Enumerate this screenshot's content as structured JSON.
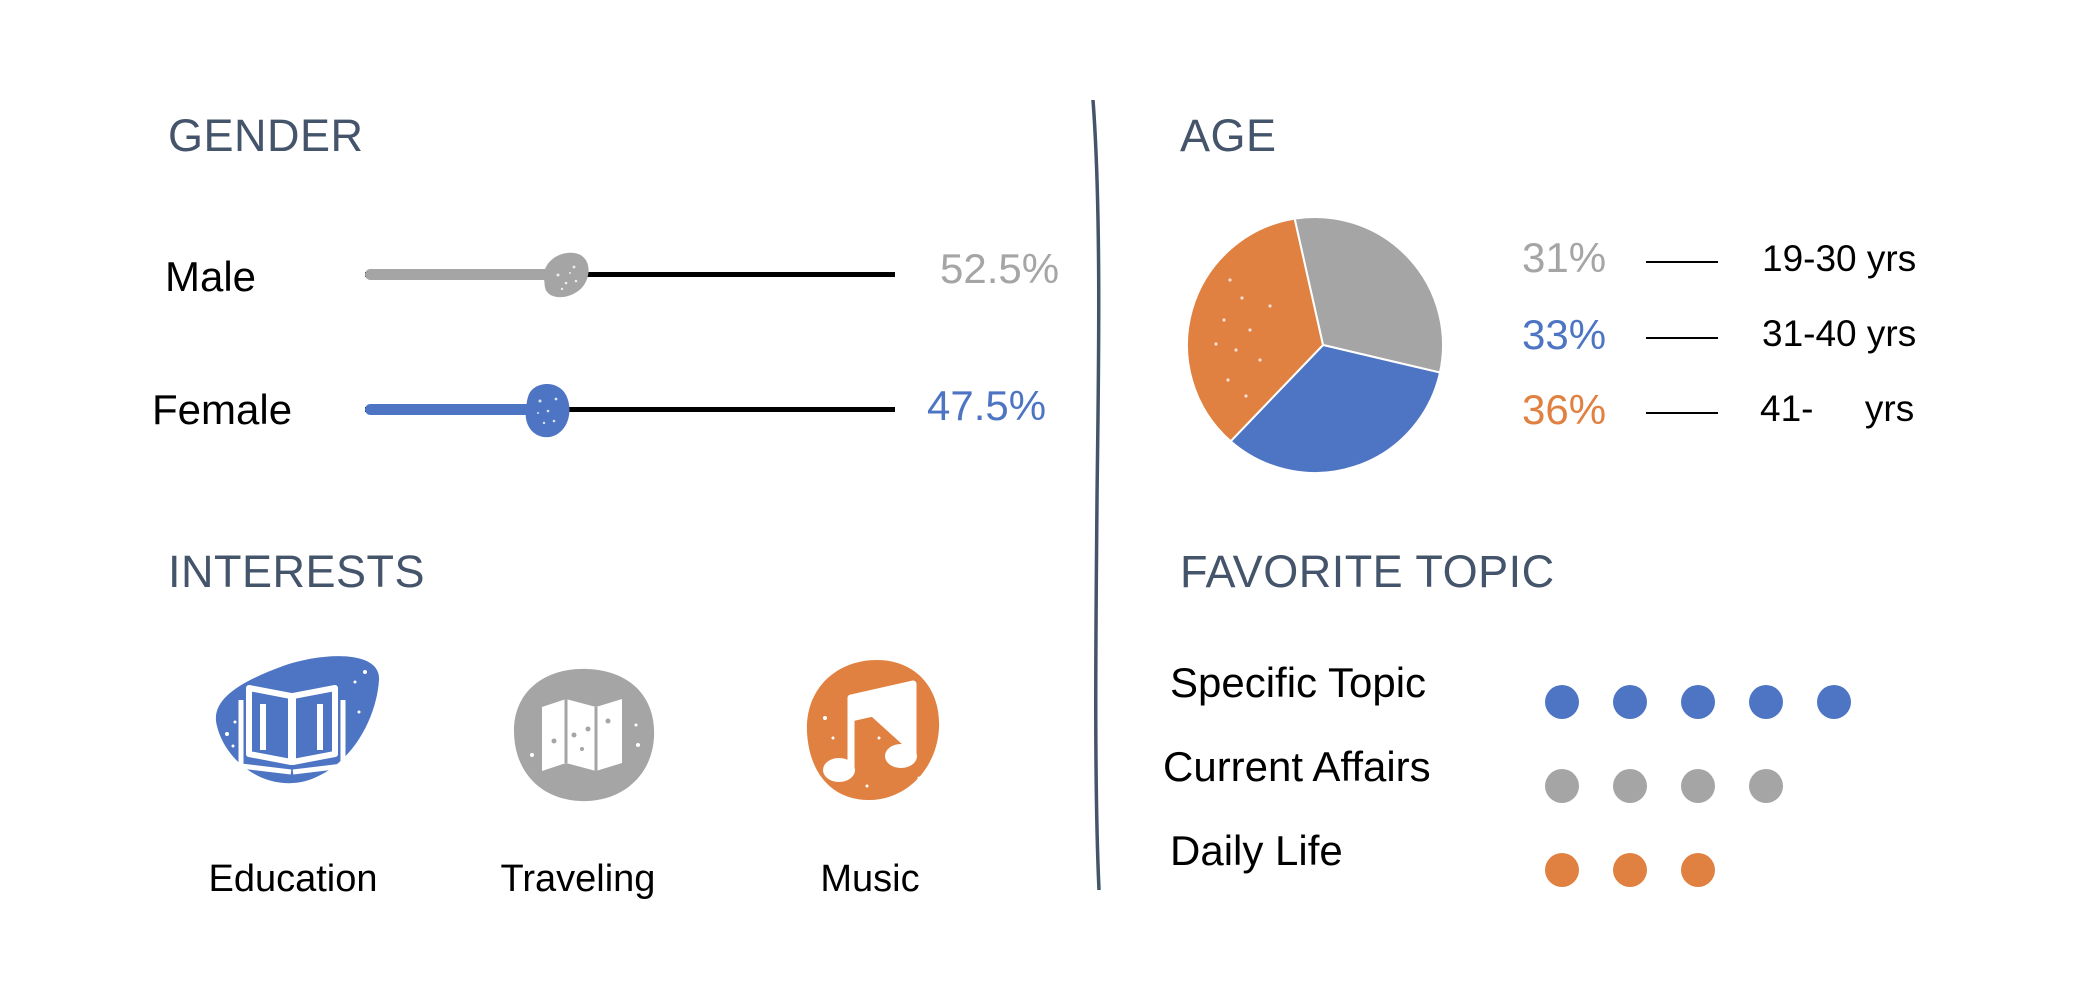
{
  "colors": {
    "heading": "#44546a",
    "gray": "#a5a5a5",
    "blue": "#4e75c3",
    "orange": "#e08141"
  },
  "gender": {
    "title": "GENDER",
    "rows": [
      {
        "label": "Male",
        "value_text": "52.5%",
        "level": 0.525,
        "color": "#a5a5a5"
      },
      {
        "label": "Female",
        "value_text": "47.5%",
        "level": 0.475,
        "color": "#4e75c3"
      }
    ]
  },
  "age": {
    "title": "AGE",
    "chart_data": {
      "type": "pie",
      "slices": [
        {
          "percent_text": "31%",
          "value": 31,
          "range": "19-30 yrs",
          "color": "#a5a5a5"
        },
        {
          "percent_text": "33%",
          "value": 33,
          "range": "31-40 yrs",
          "color": "#4e75c3"
        },
        {
          "percent_text": "36%",
          "value": 36,
          "range": "41-     yrs",
          "color": "#e08141"
        }
      ]
    }
  },
  "interests": {
    "title": "INTERESTS",
    "items": [
      {
        "label": "Education",
        "icon": "book-icon",
        "color": "#4e75c3"
      },
      {
        "label": "Traveling",
        "icon": "map-icon",
        "color": "#a5a5a5"
      },
      {
        "label": "Music",
        "icon": "music-note-icon",
        "color": "#e08141"
      }
    ]
  },
  "favorite_topic": {
    "title": "FAVORITE TOPIC",
    "rows": [
      {
        "label": "Specific Topic",
        "dots": 5,
        "color": "#4e75c3"
      },
      {
        "label": "Current Affairs",
        "dots": 4,
        "color": "#a5a5a5"
      },
      {
        "label": "Daily Life",
        "dots": 3,
        "color": "#e08141"
      }
    ]
  }
}
